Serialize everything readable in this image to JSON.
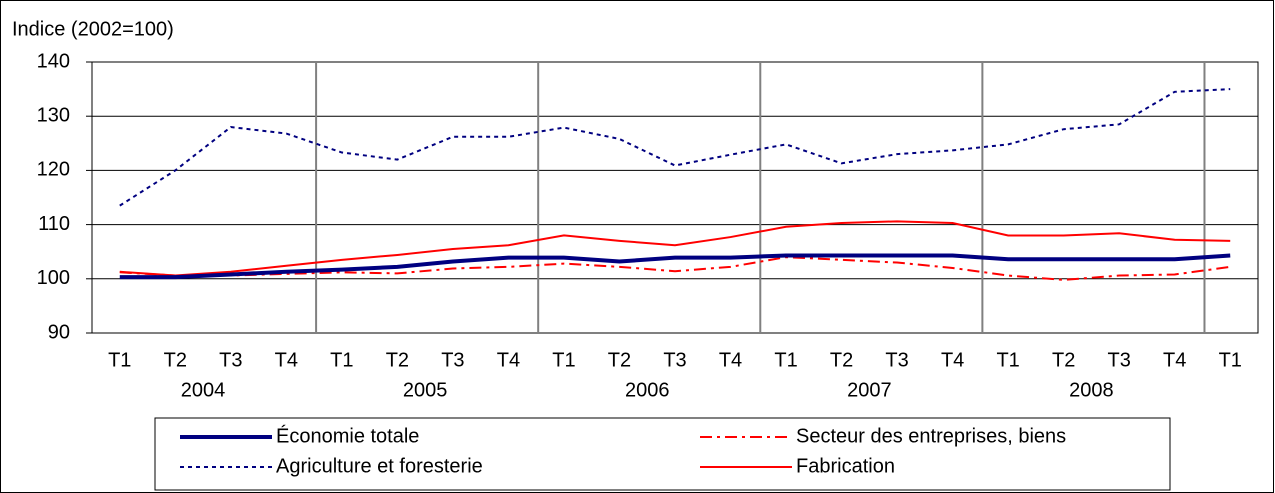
{
  "chart_data": {
    "type": "line",
    "y_label": "Indice (2002=100)",
    "categories": [
      "T1",
      "T2",
      "T3",
      "T4",
      "T1",
      "T2",
      "T3",
      "T4",
      "T1",
      "T2",
      "T3",
      "T4",
      "T1",
      "T2",
      "T3",
      "T4",
      "T1",
      "T2",
      "T3",
      "T4",
      "T1"
    ],
    "groups": [
      "2004",
      "2005",
      "2006",
      "2007",
      "2008"
    ],
    "ylim": [
      90,
      140
    ],
    "yticks": [
      90,
      100,
      110,
      120,
      130,
      140
    ],
    "grid": true,
    "series": [
      {
        "name": "Économie totale",
        "color": "#000080",
        "style": "solid-thick",
        "values": [
          100.3,
          100.3,
          100.8,
          101.3,
          101.7,
          102.2,
          103.2,
          103.9,
          103.9,
          103.2,
          103.9,
          103.9,
          104.3,
          104.3,
          104.3,
          104.3,
          103.6,
          103.6,
          103.6,
          103.6,
          104.3
        ]
      },
      {
        "name": "Secteur des entreprises, biens",
        "color": "#ff0000",
        "style": "dashdot",
        "values": [
          101.2,
          100.6,
          100.6,
          100.9,
          101.2,
          101.0,
          101.9,
          102.2,
          102.8,
          102.2,
          101.4,
          102.2,
          104.0,
          103.5,
          103.0,
          102.0,
          100.6,
          99.8,
          100.6,
          100.8,
          102.2
        ]
      },
      {
        "name": "Agriculture et foresterie",
        "color": "#000080",
        "style": "dotted",
        "values": [
          113.5,
          120.0,
          128.0,
          126.8,
          123.3,
          122.0,
          126.2,
          126.2,
          127.9,
          125.8,
          120.9,
          122.9,
          124.8,
          121.3,
          123.0,
          123.7,
          124.8,
          127.6,
          128.5,
          134.5,
          135.0
        ]
      },
      {
        "name": "Fabrication",
        "color": "#ff0000",
        "style": "solid",
        "values": [
          101.3,
          100.6,
          101.3,
          102.4,
          103.5,
          104.4,
          105.5,
          106.2,
          108.0,
          107.0,
          106.2,
          107.7,
          109.6,
          110.3,
          110.6,
          110.3,
          108.0,
          108.0,
          108.4,
          107.2,
          107.0
        ]
      }
    ]
  }
}
